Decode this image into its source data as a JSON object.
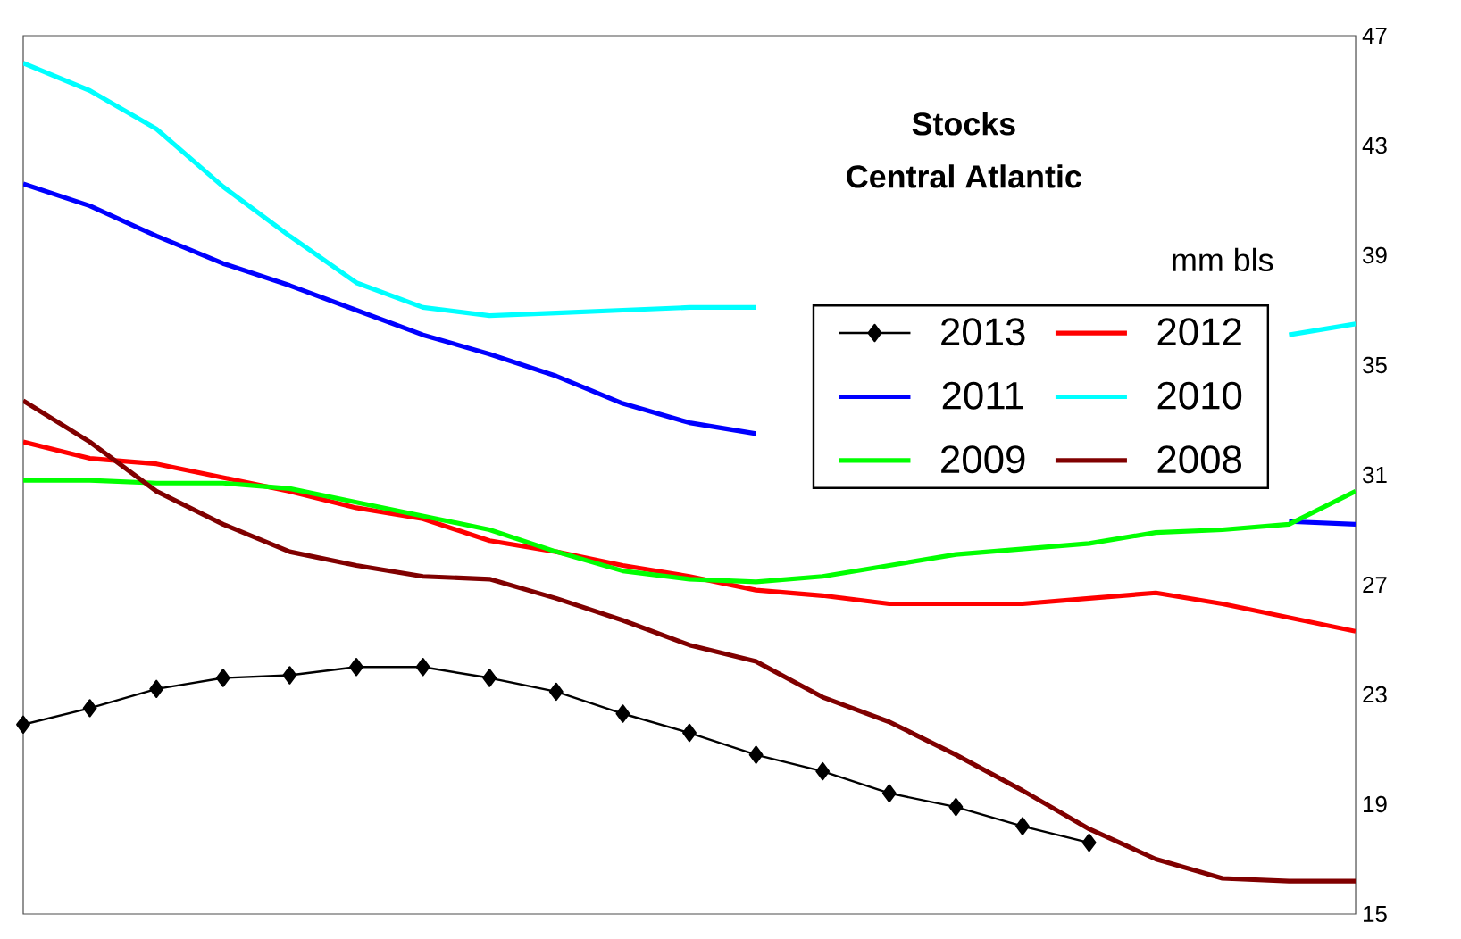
{
  "chart_data": {
    "type": "line",
    "title": "Stocks",
    "subtitle": "Central Atlantic",
    "ylabel": "mm bls",
    "categories": [
      null,
      null,
      null,
      null,
      null,
      null,
      null,
      null,
      null,
      null,
      null,
      null,
      null,
      null,
      null,
      null,
      null,
      null,
      null,
      null,
      null
    ],
    "series": [
      {
        "name": "2013",
        "color": "#000000",
        "marker": "diamond",
        "values": [
          21.9,
          22.5,
          23.2,
          23.6,
          23.7,
          24.0,
          24.0,
          23.6,
          23.1,
          22.3,
          21.6,
          20.8,
          20.2,
          19.4,
          18.9,
          18.2,
          17.6,
          null,
          null,
          null,
          null
        ]
      },
      {
        "name": "2012",
        "color": "#ff0000",
        "values": [
          32.2,
          31.6,
          31.4,
          30.9,
          30.4,
          29.8,
          29.4,
          28.6,
          28.2,
          27.7,
          27.3,
          26.8,
          26.6,
          26.3,
          26.3,
          26.3,
          26.5,
          26.7,
          26.3,
          25.8,
          25.3
        ]
      },
      {
        "name": "2011",
        "color": "#0000ff",
        "values": [
          41.6,
          40.8,
          39.7,
          38.7,
          37.9,
          37.0,
          36.1,
          35.4,
          34.6,
          33.6,
          32.9,
          32.5,
          null,
          null,
          null,
          null,
          null,
          null,
          null,
          29.3,
          29.2
        ]
      },
      {
        "name": "2010",
        "color": "#00ffff",
        "values": [
          46.0,
          45.0,
          43.6,
          41.5,
          39.7,
          38.0,
          37.1,
          36.8,
          36.9,
          37.0,
          37.1,
          37.1,
          null,
          null,
          null,
          null,
          null,
          null,
          null,
          36.1,
          36.5
        ]
      },
      {
        "name": "2009",
        "color": "#00ff00",
        "values": [
          30.8,
          30.8,
          30.7,
          30.7,
          30.5,
          30.0,
          29.5,
          29.0,
          28.2,
          27.5,
          27.2,
          27.1,
          27.3,
          27.7,
          28.1,
          28.3,
          28.5,
          28.9,
          29.0,
          29.2,
          30.4
        ]
      },
      {
        "name": "2008",
        "color": "#800000",
        "values": [
          33.7,
          32.2,
          30.4,
          29.2,
          28.2,
          27.7,
          27.3,
          27.2,
          26.5,
          25.7,
          24.8,
          24.2,
          22.9,
          22.0,
          20.8,
          19.5,
          18.1,
          17.0,
          16.3,
          16.2,
          16.2
        ]
      }
    ],
    "ylim": [
      15,
      47
    ],
    "yticks": [
      15,
      19,
      23,
      27,
      31,
      35,
      39,
      43,
      47
    ],
    "tick_labels": "y",
    "grid": false,
    "legend": "right",
    "line_style": "solid"
  }
}
